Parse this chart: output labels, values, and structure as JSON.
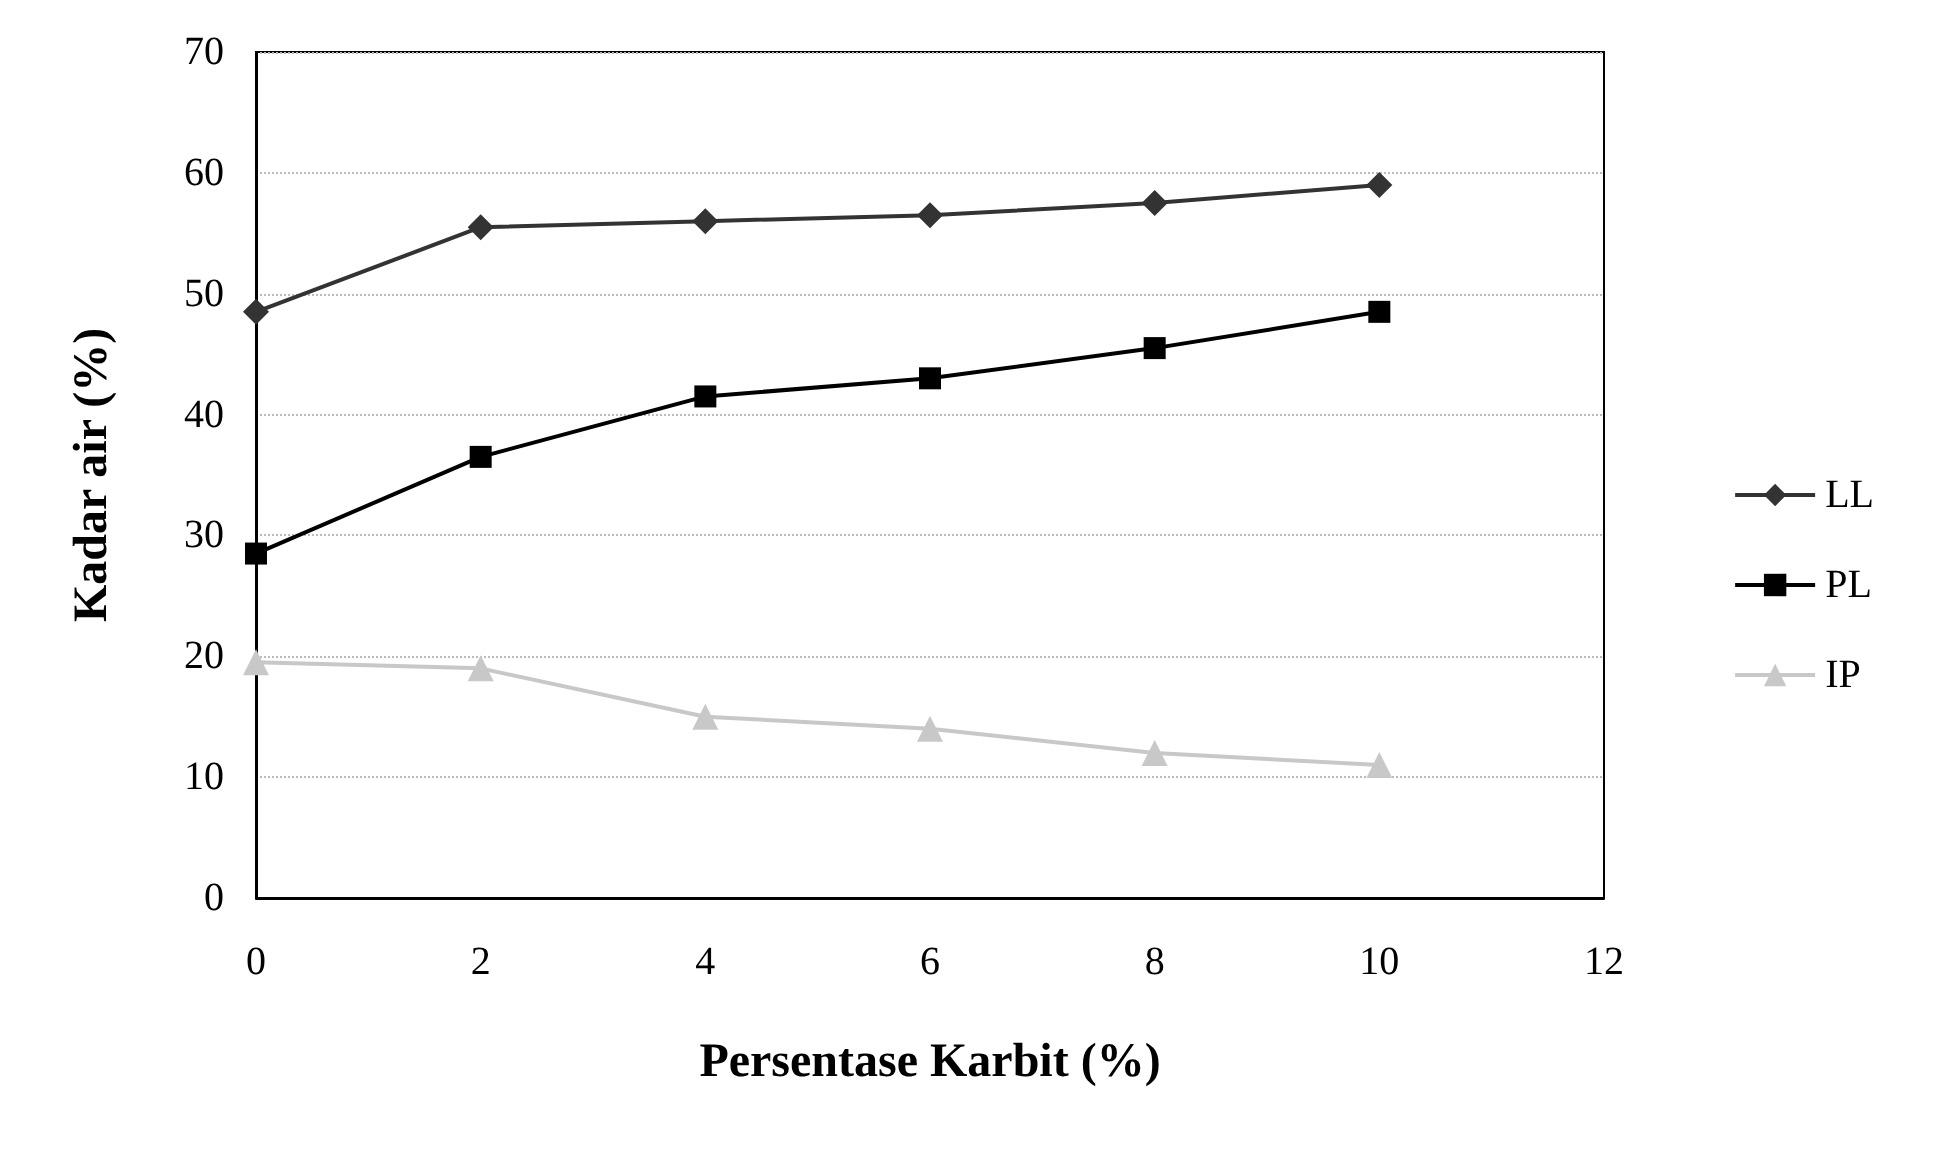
{
  "chart_data": {
    "type": "line",
    "xlabel": "Persentase Karbit (%)",
    "ylabel": "Kadar air (%)",
    "x": [
      0,
      2,
      4,
      6,
      8,
      10
    ],
    "xlim": [
      0,
      12
    ],
    "xticks": [
      0,
      2,
      4,
      6,
      8,
      10,
      12
    ],
    "ylim": [
      0,
      70
    ],
    "yticks": [
      0,
      10,
      20,
      30,
      40,
      50,
      60,
      70
    ],
    "grid": "y",
    "legend": "right",
    "series": [
      {
        "name": "LL",
        "color": "#333333",
        "marker": "diamond",
        "values": [
          48.5,
          55.5,
          56,
          56.5,
          57.5,
          59
        ]
      },
      {
        "name": "PL",
        "color": "#000000",
        "marker": "square",
        "values": [
          28.5,
          36.5,
          41.5,
          43,
          45.5,
          48.5
        ]
      },
      {
        "name": "IP",
        "color": "#c8c8c8",
        "marker": "triangle",
        "values": [
          19.5,
          19,
          15,
          14,
          12,
          11
        ]
      }
    ]
  }
}
